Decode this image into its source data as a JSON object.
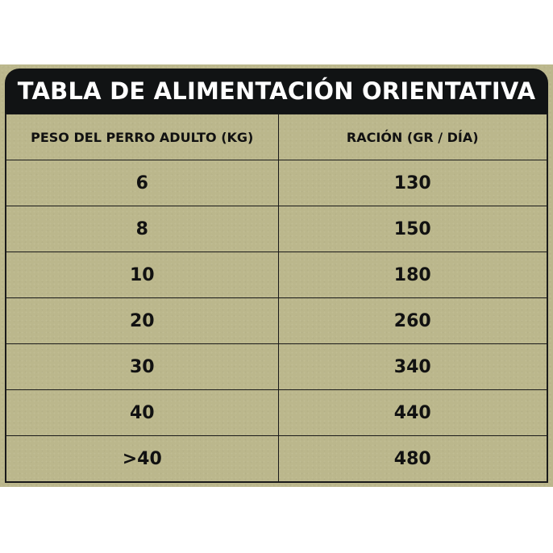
{
  "title": "TABLA DE ALIMENTACIÓN ORIENTATIVA",
  "headers": [
    "PESO DEL PERRO ADULTO  (KG)",
    "RACIÓN (GR / DÍA)"
  ],
  "rows": [
    {
      "weight": "6",
      "ration": "130"
    },
    {
      "weight": "8",
      "ration": "150"
    },
    {
      "weight": "10",
      "ration": "180"
    },
    {
      "weight": "20",
      "ration": "260"
    },
    {
      "weight": "30",
      "ration": "340"
    },
    {
      "weight": "40",
      "ration": "440"
    },
    {
      "weight": ">40",
      "ration": "480"
    }
  ],
  "colors": {
    "background": "#bbb78c",
    "header_bar": "#111314",
    "text": "#111111"
  }
}
